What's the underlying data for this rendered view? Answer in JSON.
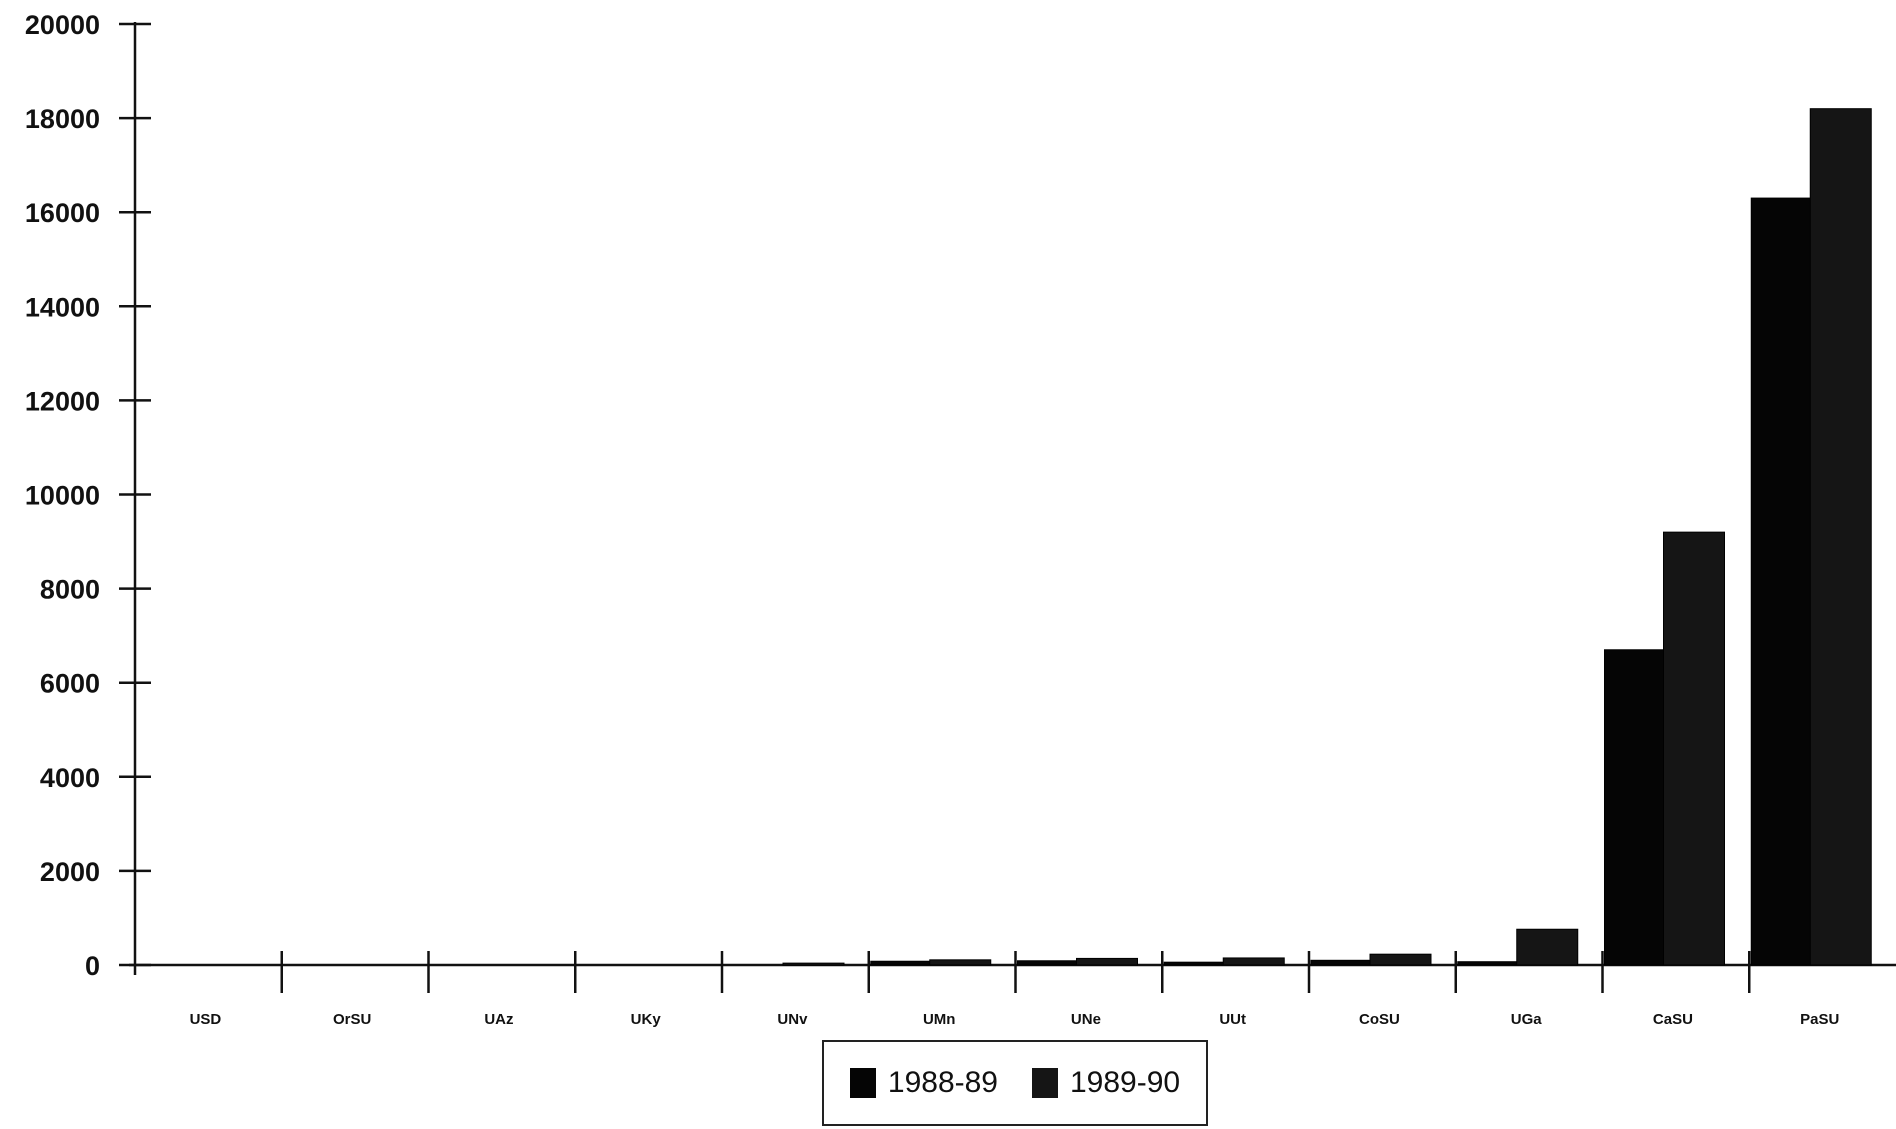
{
  "chart_data": {
    "type": "bar",
    "title": "",
    "xlabel": "",
    "ylabel": "",
    "ylim": [
      0,
      20000
    ],
    "yticks": [
      0,
      2000,
      4000,
      6000,
      8000,
      10000,
      12000,
      14000,
      16000,
      18000,
      20000
    ],
    "grid": false,
    "legend_position": "bottom-center",
    "categories": [
      "USD",
      "OrSU",
      "UAz",
      "UKy",
      "UNv",
      "UMn",
      "UNe",
      "UUt",
      "CoSU",
      "UGa",
      "CaSU",
      "PaSU"
    ],
    "series": [
      {
        "name": "1988-89",
        "color": "#050505",
        "values": [
          0,
          0,
          0,
          0,
          0,
          80,
          90,
          60,
          100,
          70,
          6700,
          16300
        ]
      },
      {
        "name": "1989-90",
        "color": "#151515",
        "values": [
          0,
          0,
          0,
          0,
          40,
          110,
          140,
          150,
          230,
          760,
          9200,
          18200
        ]
      }
    ]
  }
}
